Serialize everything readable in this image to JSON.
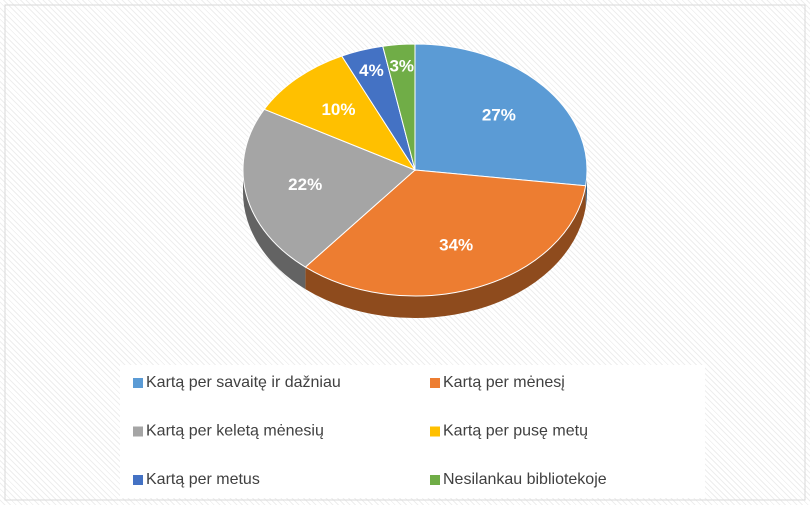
{
  "chart_data": {
    "type": "pie",
    "three_d": true,
    "categories": [
      "Kartą per savaitę ir dažniau",
      "Kartą per mėnesį",
      "Kartą per keletą mėnesių",
      "Kartą per pusę metų",
      "Kartą per metus",
      "Nesilankau bibliotekoje"
    ],
    "values": [
      27,
      34,
      22,
      10,
      4,
      3
    ],
    "value_labels": [
      "27%",
      "34%",
      "22%",
      "10%",
      "4%",
      "3%"
    ],
    "colors": [
      "#5b9bd5",
      "#ed7d31",
      "#a5a5a5",
      "#ffc000",
      "#4472c4",
      "#70ad47"
    ],
    "legend": "bottom"
  }
}
